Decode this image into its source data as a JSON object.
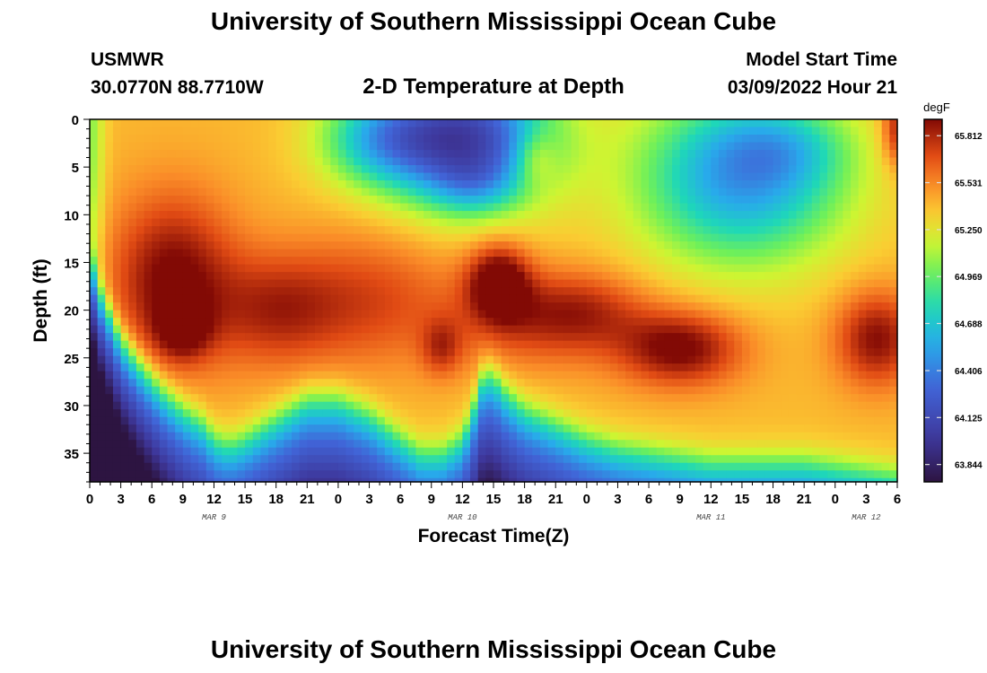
{
  "header": {
    "title": "University of Southern Mississippi Ocean Cube",
    "station": "USMWR",
    "coords": "30.0770N  88.7710W",
    "subtitle": "2-D Temperature at Depth",
    "model_label": "Model Start Time",
    "model_time": "03/09/2022 Hour 21"
  },
  "footer": {
    "title": "University of Southern Mississippi Ocean Cube"
  },
  "chart_data": {
    "type": "heatmap",
    "xlabel": "Forecast Time(Z)",
    "ylabel": "Depth (ft)",
    "x_unit": "forecast hours from 00Z Mar 9",
    "xlim": [
      0,
      78
    ],
    "ylim": [
      38,
      0
    ],
    "x_ticks": [
      0,
      3,
      6,
      9,
      12,
      15,
      18,
      21,
      24,
      27,
      30,
      33,
      36,
      39,
      42,
      45,
      48,
      51,
      54,
      57,
      60,
      63,
      66,
      69,
      72,
      75,
      78
    ],
    "x_tick_labels": [
      "0",
      "3",
      "6",
      "9",
      "12",
      "15",
      "18",
      "21",
      "0",
      "3",
      "6",
      "9",
      "12",
      "15",
      "18",
      "21",
      "0",
      "3",
      "6",
      "9",
      "12",
      "15",
      "18",
      "21",
      "0",
      "3",
      "6"
    ],
    "y_ticks": [
      0,
      5,
      10,
      15,
      20,
      25,
      30,
      35
    ],
    "y_tick_labels": [
      "0",
      "5",
      "10",
      "15",
      "20",
      "25",
      "30",
      "35"
    ],
    "date_labels": [
      {
        "text": "MAR 9",
        "x": 12
      },
      {
        "text": "MAR 10",
        "x": 36
      },
      {
        "text": "MAR 11",
        "x": 60
      },
      {
        "text": "MAR 12",
        "x": 75
      }
    ],
    "colorbar": {
      "unit": "degF",
      "min": 63.74,
      "max": 65.91,
      "ticks": [
        63.844,
        64.125,
        64.406,
        64.688,
        64.969,
        65.25,
        65.531,
        65.812
      ],
      "tick_labels": [
        "63.844",
        "64.125",
        "64.406",
        "64.688",
        "64.969",
        "65.250",
        "65.531",
        "65.812"
      ]
    },
    "bottom_boundary": {
      "t": [
        0,
        1,
        3,
        5,
        7,
        9,
        11,
        12,
        13,
        14,
        15,
        18,
        21,
        24,
        27,
        30,
        32,
        34,
        36,
        37,
        38,
        39,
        40,
        42,
        45,
        48,
        51,
        54,
        57,
        60,
        63,
        66,
        69,
        72,
        75,
        78
      ],
      "depth": [
        14,
        18,
        23,
        26,
        28.5,
        30.5,
        32,
        33.5,
        34,
        34,
        33.5,
        31.5,
        29.5,
        29.5,
        31,
        33.5,
        35,
        35,
        33.5,
        30.5,
        27,
        27,
        28.5,
        30.5,
        32,
        33.5,
        34.5,
        35,
        35.5,
        36,
        36,
        36,
        36,
        36.5,
        37,
        37.5
      ]
    },
    "cold_blobs": [
      {
        "t": 36.5,
        "d": 2,
        "rt": 8,
        "rd": 7,
        "amp": 1.3
      },
      {
        "t": 37,
        "d": 7,
        "rt": 4,
        "rd": 3,
        "amp": 0.25
      },
      {
        "t": 28,
        "d": 2,
        "rt": 6,
        "rd": 5,
        "amp": 0.6
      },
      {
        "t": 63,
        "d": 6,
        "rt": 10,
        "rd": 9,
        "amp": 0.9
      },
      {
        "t": 67,
        "d": 3,
        "rt": 6,
        "rd": 4,
        "amp": 0.25
      },
      {
        "t": 0,
        "d": 2,
        "rt": 1.4,
        "rd": 22,
        "amp": 0.35
      }
    ],
    "warm_blobs": [
      {
        "t": 8,
        "d": 17,
        "rt": 6,
        "rd": 9,
        "amp": 0.55
      },
      {
        "t": 9,
        "d": 22,
        "rt": 2.5,
        "rd": 3,
        "amp": 0.35
      },
      {
        "t": 18,
        "d": 20,
        "rt": 6,
        "rd": 6,
        "amp": 0.35
      },
      {
        "t": 27,
        "d": 19,
        "rt": 8,
        "rd": 7,
        "amp": 0.3
      },
      {
        "t": 34,
        "d": 24,
        "rt": 2,
        "rd": 3,
        "amp": 0.3
      },
      {
        "t": 39.5,
        "d": 17,
        "rt": 3,
        "rd": 4,
        "amp": 0.6
      },
      {
        "t": 43,
        "d": 21,
        "rt": 8,
        "rd": 5,
        "amp": 0.3
      },
      {
        "t": 48,
        "d": 20,
        "rt": 6,
        "rd": 4,
        "amp": 0.25
      },
      {
        "t": 57,
        "d": 24,
        "rt": 6,
        "rd": 4,
        "amp": 0.55
      },
      {
        "t": 76,
        "d": 23,
        "rt": 4,
        "rd": 5,
        "amp": 0.5
      },
      {
        "t": 43,
        "d": 4,
        "rt": 2,
        "rd": 3,
        "amp": 0.3
      },
      {
        "t": 78,
        "d": 1,
        "rt": 1.5,
        "rd": 4,
        "amp": 0.45
      }
    ]
  }
}
